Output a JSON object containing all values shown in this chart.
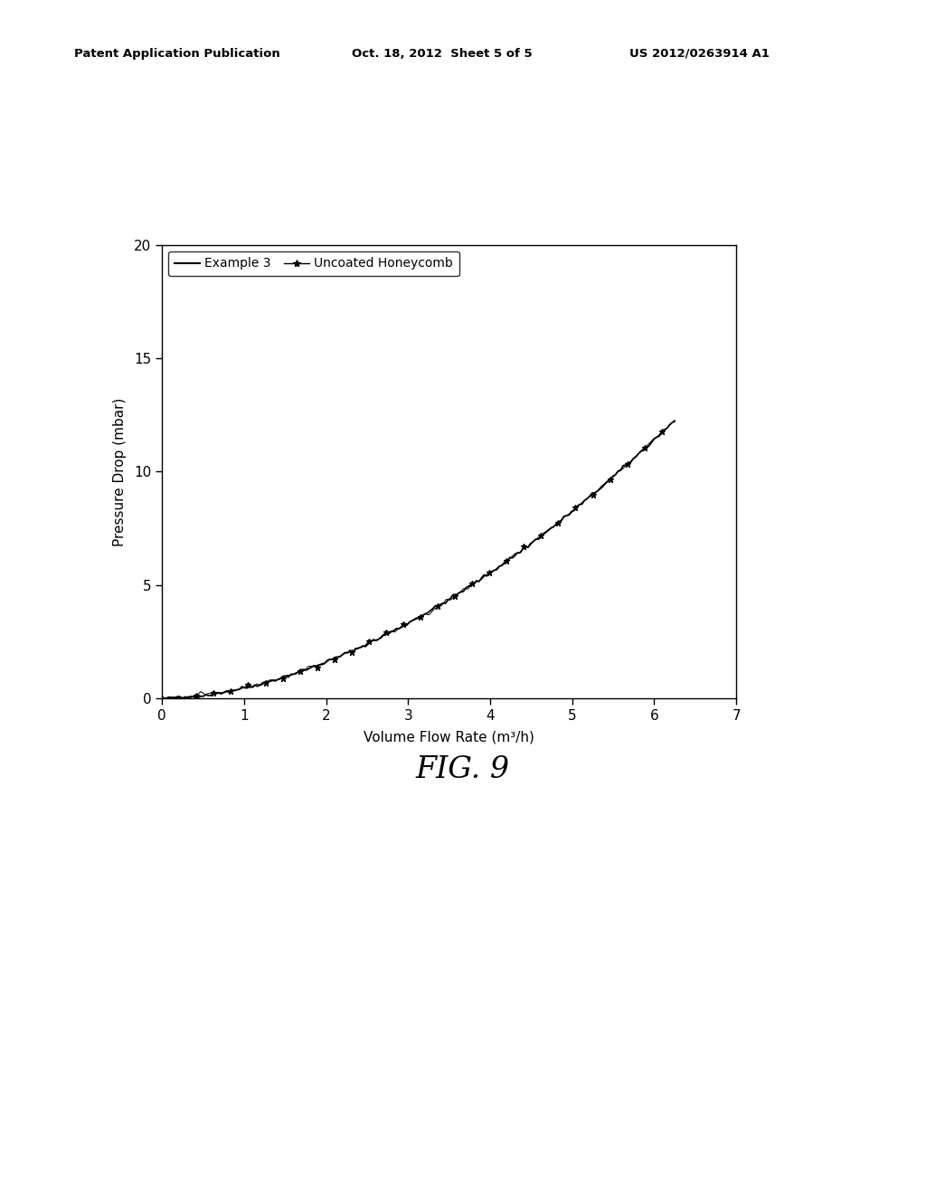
{
  "title": "",
  "xlabel": "Volume Flow Rate (m³/h)",
  "ylabel": "Pressure Drop (mbar)",
  "xlim": [
    0,
    7
  ],
  "ylim": [
    0,
    20
  ],
  "xticks": [
    0,
    1,
    2,
    3,
    4,
    5,
    6,
    7
  ],
  "yticks": [
    0,
    5,
    10,
    15,
    20
  ],
  "legend_labels": [
    "Example 3",
    "Uncoated Honeycomb"
  ],
  "fig_caption": "FIG. 9",
  "header_left": "Patent Application Publication",
  "header_center": "Oct. 18, 2012  Sheet 5 of 5",
  "header_right": "US 2012/0263914 A1",
  "line_color": "#000000",
  "background_color": "#ffffff",
  "curve_x_start": 0.0,
  "curve_x_end": 6.25,
  "curve_coeff": 0.47,
  "curve_power": 1.78,
  "noise_scale": 0.04,
  "num_points_line1": 200,
  "num_points_line2": 120
}
